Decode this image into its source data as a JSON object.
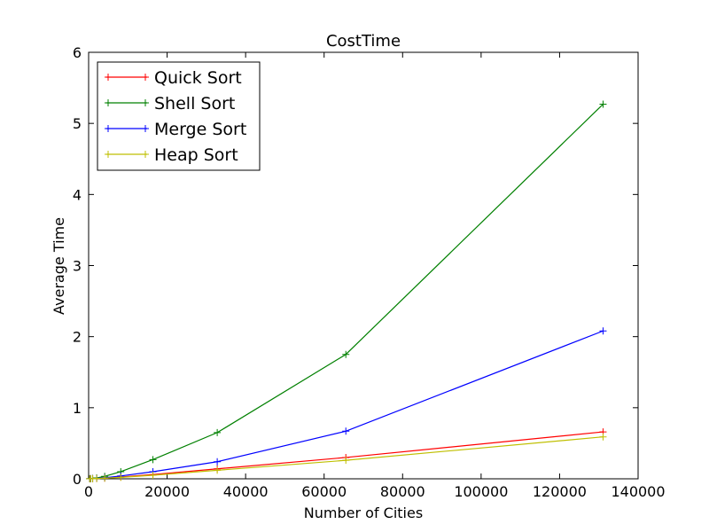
{
  "chart_data": {
    "type": "line",
    "title": "CostTime",
    "xlabel": "Number of Cities",
    "ylabel": "Average Time",
    "xlim": [
      0,
      140000
    ],
    "ylim": [
      0,
      6
    ],
    "xticks": [
      0,
      20000,
      40000,
      60000,
      80000,
      100000,
      120000,
      140000
    ],
    "xtick_labels": [
      "0",
      "20000",
      "40000",
      "60000",
      "80000",
      "100000",
      "120000",
      "140000"
    ],
    "yticks": [
      0,
      1,
      2,
      3,
      4,
      5,
      6
    ],
    "ytick_labels": [
      "0",
      "1",
      "2",
      "3",
      "4",
      "5",
      "6"
    ],
    "grid": false,
    "legend": "top-left",
    "marker": "plus",
    "x": [
      256,
      512,
      1024,
      2048,
      4096,
      8192,
      16384,
      32768,
      65536,
      131072
    ],
    "series": [
      {
        "name": "Quick Sort",
        "color": "#ff0000",
        "values": [
          0.0005,
          0.001,
          0.002,
          0.005,
          0.01,
          0.025,
          0.06,
          0.14,
          0.3,
          0.66
        ]
      },
      {
        "name": "Shell Sort",
        "color": "#008000",
        "values": [
          0.001,
          0.002,
          0.005,
          0.012,
          0.035,
          0.1,
          0.27,
          0.65,
          1.75,
          5.27
        ]
      },
      {
        "name": "Merge Sort",
        "color": "#0000ff",
        "values": [
          0.0006,
          0.0012,
          0.003,
          0.007,
          0.015,
          0.04,
          0.1,
          0.24,
          0.67,
          2.08
        ]
      },
      {
        "name": "Heap Sort",
        "color": "#bfbf00",
        "values": [
          0.0004,
          0.0009,
          0.002,
          0.004,
          0.009,
          0.02,
          0.05,
          0.12,
          0.26,
          0.59
        ]
      }
    ]
  }
}
